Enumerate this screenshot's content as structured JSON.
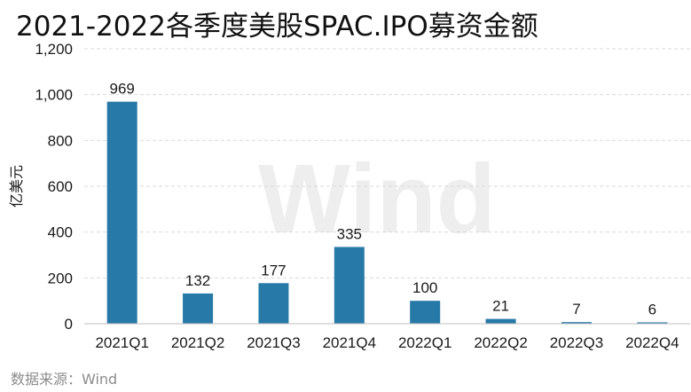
{
  "title": "2021-2022各季度美股SPAC.IPO募资金额",
  "source": "数据来源：Wind",
  "watermark": "Wind",
  "chart_data": {
    "type": "bar",
    "title": "2021-2022各季度美股SPAC.IPO募资金额",
    "ylabel": "亿美元",
    "xlabel": "",
    "ylim": [
      0,
      1200
    ],
    "yticks": [
      0,
      200,
      400,
      600,
      800,
      1000,
      1200
    ],
    "ytick_labels": [
      "0",
      "200",
      "400",
      "600",
      "800",
      "1,000",
      "1,200"
    ],
    "grid": "horizontal dashed",
    "categories": [
      "2021Q1",
      "2021Q2",
      "2021Q3",
      "2021Q4",
      "2022Q1",
      "2022Q2",
      "2022Q3",
      "2022Q4"
    ],
    "values": [
      969,
      132,
      177,
      335,
      100,
      21,
      7,
      6
    ],
    "bar_color": "#2779a7"
  }
}
